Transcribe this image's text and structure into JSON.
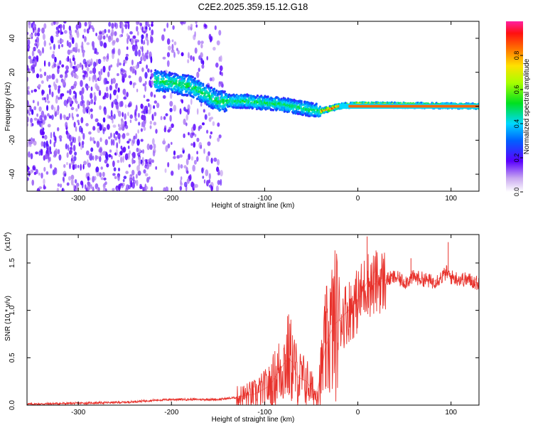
{
  "figure": {
    "title": "C2E2.2025.359.15.12.G18"
  },
  "chart_data": [
    {
      "type": "heatmap",
      "xlabel": "Height of straight line (km)",
      "ylabel": "Frequency (Hz)",
      "xlim": [
        -355,
        130
      ],
      "ylim": [
        -50,
        50
      ],
      "xticks": [
        -300,
        -200,
        -100,
        0,
        100
      ],
      "yticks": [
        -40,
        -20,
        0,
        20,
        40
      ],
      "colorbar": {
        "label": "Normalized spectral amplitude",
        "range": [
          0,
          1
        ],
        "ticks": [
          0.0,
          0.2,
          0.4,
          0.6,
          0.8
        ]
      },
      "ridge": {
        "description_points": [
          {
            "x": -215,
            "y": 15
          },
          {
            "x": -180,
            "y": 12
          },
          {
            "x": -150,
            "y": 3
          },
          {
            "x": -120,
            "y": 3
          },
          {
            "x": -80,
            "y": 1
          },
          {
            "x": -40,
            "y": -3
          },
          {
            "x": -20,
            "y": 0
          },
          {
            "x": 0,
            "y": 1
          },
          {
            "x": 130,
            "y": 0
          }
        ]
      },
      "noise_region_x": [
        -355,
        -145
      ]
    },
    {
      "type": "line",
      "xlabel": "Height of straight line (km)",
      "ylabel": "SNR (10 * v/v)",
      "yscale_note": "(x10",
      "yscale_exp": "4",
      "yscale_close": ")",
      "xlim": [
        -355,
        130
      ],
      "ylim": [
        0,
        1.8
      ],
      "xticks": [
        -300,
        -200,
        -100,
        0,
        100
      ],
      "yticks": [
        0.0,
        0.5,
        1.0,
        1.5
      ],
      "color": "#e8312b",
      "series": [
        {
          "name": "SNR",
          "x": [
            -355,
            -300,
            -250,
            -220,
            -200,
            -150,
            -130,
            -110,
            -95,
            -85,
            -75,
            -70,
            -65,
            -55,
            -45,
            -40,
            -35,
            -30,
            -25,
            -20,
            -15,
            -10,
            -5,
            0,
            5,
            10,
            15,
            20,
            30,
            40,
            50,
            60,
            70,
            80,
            90,
            95,
            100,
            110,
            120,
            130
          ],
          "y": [
            0.01,
            0.02,
            0.03,
            0.05,
            0.06,
            0.06,
            0.08,
            0.12,
            0.2,
            0.35,
            0.5,
            0.45,
            0.3,
            0.25,
            0.1,
            0.3,
            0.6,
            0.75,
            0.85,
            0.9,
            0.95,
            1.0,
            1.05,
            1.1,
            1.2,
            1.3,
            1.25,
            1.3,
            1.32,
            1.35,
            1.3,
            1.35,
            1.33,
            1.3,
            1.35,
            1.4,
            1.35,
            1.33,
            1.32,
            1.28
          ]
        }
      ]
    }
  ]
}
